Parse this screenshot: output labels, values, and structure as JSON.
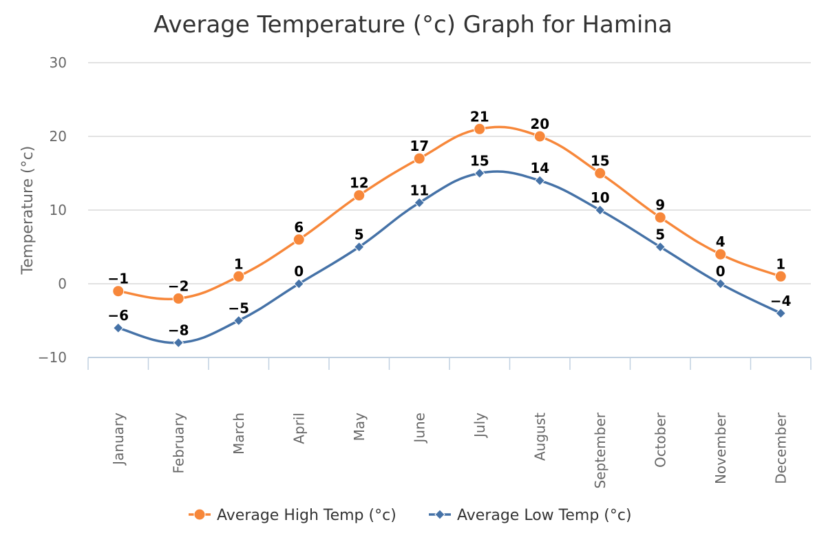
{
  "chart_data": {
    "type": "line",
    "title": "Average Temperature (°c) Graph for Hamina",
    "xlabel": "",
    "ylabel": "Temperature (°c)",
    "ylim": [
      -10,
      30
    ],
    "yticks": [
      -10,
      0,
      10,
      20,
      30
    ],
    "grid": true,
    "smooth": true,
    "legend_position": "bottom",
    "categories": [
      "January",
      "February",
      "March",
      "April",
      "May",
      "June",
      "July",
      "August",
      "September",
      "October",
      "November",
      "December"
    ],
    "series": [
      {
        "name": "Average High Temp (°c)",
        "color": "#f7873a",
        "marker": "circle",
        "values": [
          -1,
          -2,
          1,
          6,
          12,
          17,
          21,
          20,
          15,
          9,
          4,
          1
        ],
        "labels": [
          "−1",
          "−2",
          "1",
          "6",
          "12",
          "17",
          "21",
          "20",
          "15",
          "9",
          "4",
          "1"
        ]
      },
      {
        "name": "Average Low Temp (°c)",
        "color": "#4572a7",
        "marker": "diamond",
        "values": [
          -6,
          -8,
          -5,
          0,
          5,
          11,
          15,
          14,
          10,
          5,
          0,
          -4
        ],
        "labels": [
          "−6",
          "−8",
          "−5",
          "0",
          "5",
          "11",
          "15",
          "14",
          "10",
          "5",
          "0",
          "−4"
        ]
      }
    ],
    "ytick_labels": [
      "−10",
      "0",
      "10",
      "20",
      "30"
    ]
  }
}
